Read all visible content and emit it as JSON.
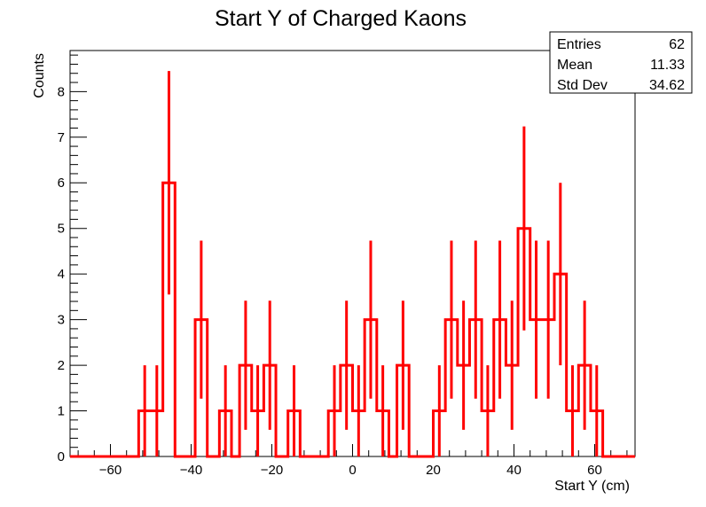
{
  "chart_data": {
    "type": "histogram",
    "title": "Start Y of Charged Kaons",
    "xlabel": "Start Y (cm)",
    "ylabel": "Counts",
    "xlim": [
      -70,
      70
    ],
    "ylim": [
      0,
      8.9
    ],
    "bin_width": 3,
    "x_ticks": [
      -60,
      -40,
      -20,
      0,
      20,
      40,
      60
    ],
    "x_tick_labels": [
      "−60",
      "−40",
      "−20",
      "0",
      "20",
      "40",
      "60"
    ],
    "y_ticks": [
      0,
      1,
      2,
      3,
      4,
      5,
      6,
      7,
      8
    ],
    "y_tick_labels": [
      "0",
      "1",
      "2",
      "3",
      "4",
      "5",
      "6",
      "7",
      "8"
    ],
    "bins": [
      {
        "x": -51.5,
        "count": 1
      },
      {
        "x": -48.5,
        "count": 1
      },
      {
        "x": -45.5,
        "count": 6
      },
      {
        "x": -37.5,
        "count": 3
      },
      {
        "x": -31.5,
        "count": 1
      },
      {
        "x": -26.5,
        "count": 2
      },
      {
        "x": -23.5,
        "count": 1
      },
      {
        "x": -20.5,
        "count": 2
      },
      {
        "x": -14.5,
        "count": 1
      },
      {
        "x": -4.5,
        "count": 1
      },
      {
        "x": -1.5,
        "count": 2
      },
      {
        "x": 1.5,
        "count": 1
      },
      {
        "x": 4.5,
        "count": 3
      },
      {
        "x": 7.5,
        "count": 1
      },
      {
        "x": 12.5,
        "count": 2
      },
      {
        "x": 21.5,
        "count": 1
      },
      {
        "x": 24.5,
        "count": 3
      },
      {
        "x": 27.5,
        "count": 2
      },
      {
        "x": 30.5,
        "count": 3
      },
      {
        "x": 33.5,
        "count": 1
      },
      {
        "x": 36.5,
        "count": 3
      },
      {
        "x": 39.5,
        "count": 2
      },
      {
        "x": 42.5,
        "count": 5
      },
      {
        "x": 45.5,
        "count": 3
      },
      {
        "x": 48.5,
        "count": 3
      },
      {
        "x": 51.5,
        "count": 4
      },
      {
        "x": 54.5,
        "count": 1
      },
      {
        "x": 57.5,
        "count": 2
      },
      {
        "x": 60.5,
        "count": 1
      }
    ],
    "stats": [
      {
        "label": "Entries",
        "value": "62"
      },
      {
        "label": "Mean",
        "value": "11.33"
      },
      {
        "label": "Std Dev",
        "value": "34.62"
      }
    ],
    "colors": {
      "line": "#ff0000",
      "axis": "#000000"
    }
  }
}
